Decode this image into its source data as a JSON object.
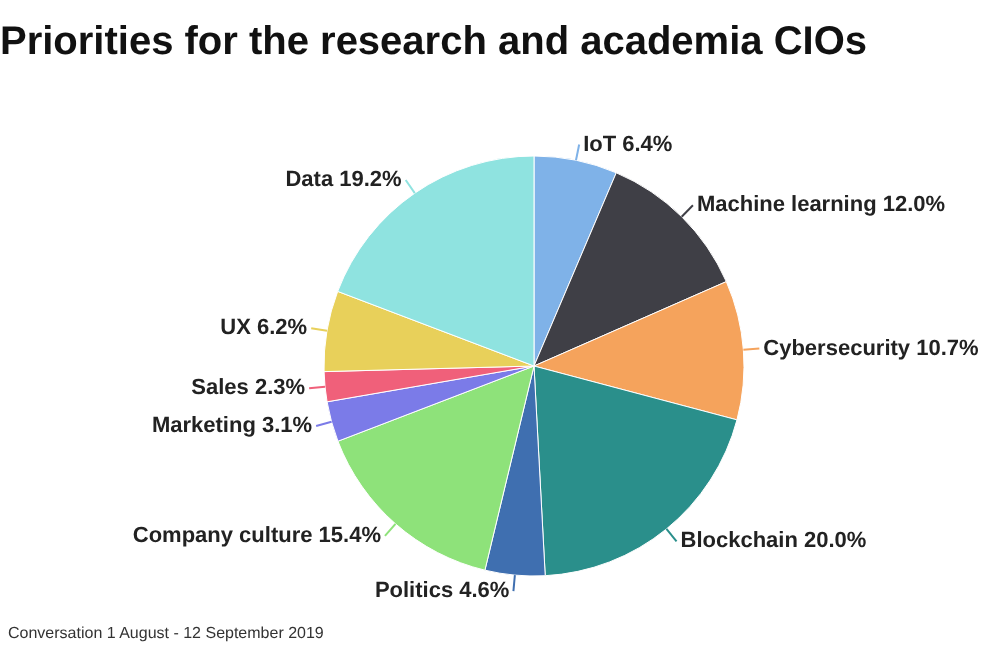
{
  "chart_data": {
    "type": "pie",
    "title": "Priorities for the research and academia CIOs",
    "categories": [
      "IoT",
      "Machine learning",
      "Cybersecurity",
      "Blockchain",
      "Politics",
      "Company culture",
      "Marketing",
      "Sales",
      "UX",
      "Data"
    ],
    "values": [
      6.4,
      12.0,
      10.7,
      20.0,
      4.6,
      15.4,
      3.1,
      2.3,
      6.2,
      19.2
    ],
    "value_labels": [
      "6.4%",
      "12.0%",
      "10.7%",
      "20.0%",
      "4.6%",
      "15.4%",
      "3.1%",
      "2.3%",
      "6.2%",
      "19.2%"
    ],
    "colors": [
      "#7fb2e8",
      "#3f3f46",
      "#f5a35c",
      "#2a8f8b",
      "#3f6fb0",
      "#8ee27a",
      "#7b7be8",
      "#f0607a",
      "#e8d05a",
      "#8fe3e0"
    ],
    "legend": false,
    "annotations": [
      "Conversation 1 August - 12 September 2019"
    ]
  }
}
